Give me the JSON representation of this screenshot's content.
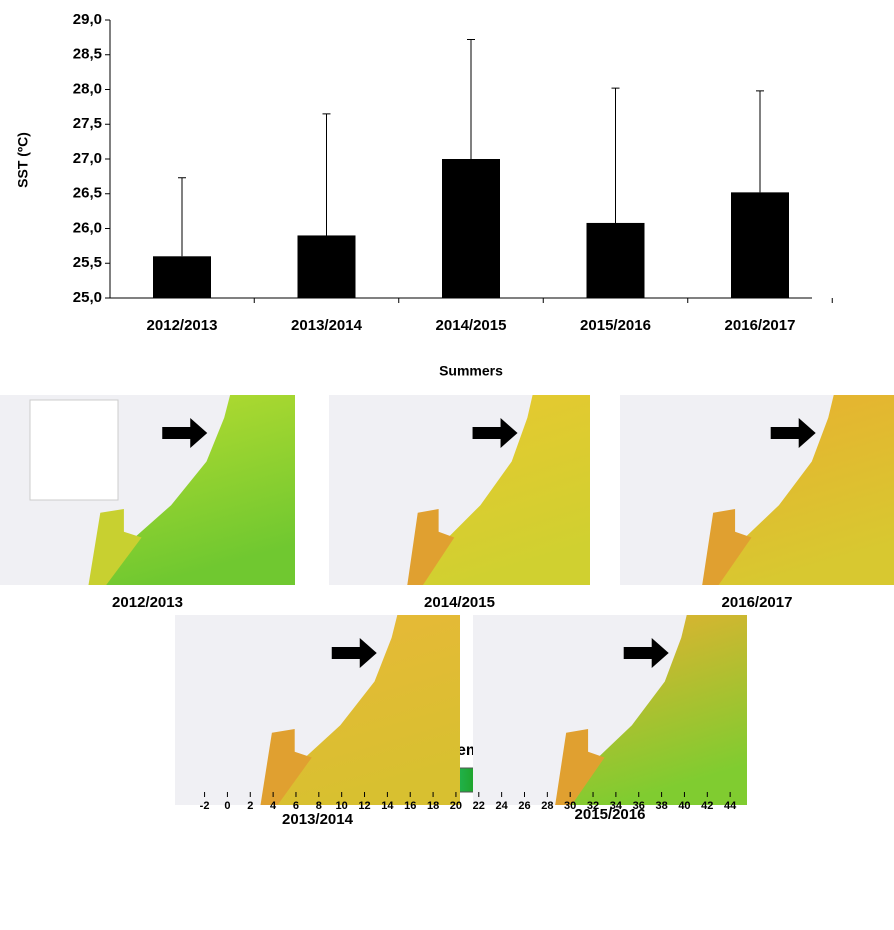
{
  "chart_data": {
    "type": "bar",
    "ylabel": "SST (ºC)",
    "xlabel": "Summers",
    "categories": [
      "2012/2013",
      "2013/2014",
      "2014/2015",
      "2015/2016",
      "2016/2017"
    ],
    "values": [
      25.6,
      25.9,
      27.0,
      26.08,
      26.52
    ],
    "errors": [
      1.13,
      1.75,
      1.72,
      1.94,
      1.46
    ],
    "color": "#000000",
    "ylim": [
      25,
      29
    ],
    "yticks": [
      {
        "value": 25,
        "label": "25,0"
      },
      {
        "value": 25.5,
        "label": "25,5"
      },
      {
        "value": 26,
        "label": "26,0"
      },
      {
        "value": 26.5,
        "label": "26,5"
      },
      {
        "value": 27,
        "label": "27,0"
      },
      {
        "value": 27.5,
        "label": "27,5"
      },
      {
        "value": 28,
        "label": "28,0"
      },
      {
        "value": 28.5,
        "label": "28,5"
      },
      {
        "value": 29,
        "label": "29,0"
      }
    ]
  },
  "maps": [
    "2012/2013",
    "2014/2015",
    "2016/2017",
    "2013/2014",
    "2015/2016"
  ],
  "colorbar": {
    "title": "Sea Surface Temperature   (°C )",
    "lim": [
      -2.4,
      44.6
    ],
    "ticks": [
      -2,
      0,
      2,
      4,
      6,
      8,
      10,
      12,
      14,
      16,
      18,
      20,
      22,
      24,
      26,
      28,
      30,
      32,
      34,
      36,
      38,
      40,
      42,
      44
    ]
  }
}
